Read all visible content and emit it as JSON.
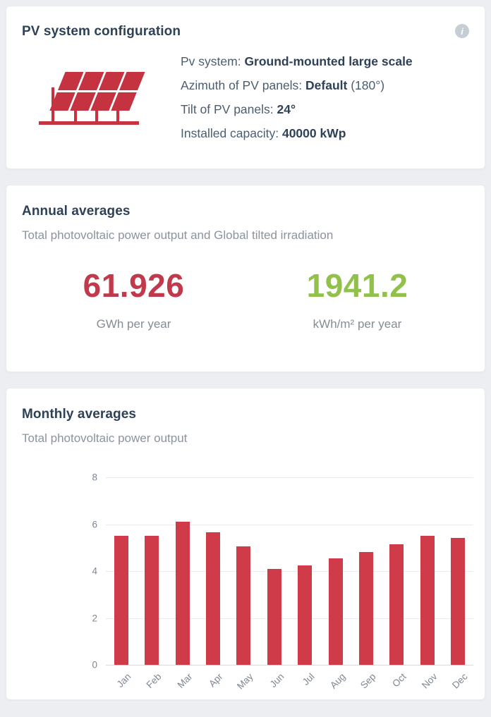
{
  "colors": {
    "background": "#edeef1",
    "card": "#ffffff",
    "heading": "#2e4156",
    "body_text": "#4c5d6f",
    "muted_text": "#8c939d",
    "axis_text": "#7e8792",
    "red_accent": "#c03a4c",
    "green_accent": "#92c14b",
    "bar_red": "#d03b49",
    "icon_red": "#c53240",
    "info_icon_bg": "#c7cdd4"
  },
  "pv_card": {
    "title": "PV system configuration",
    "info_icon_glyph": "i",
    "lines": [
      {
        "label": "Pv system: ",
        "value": "Ground-mounted large scale",
        "suffix": ""
      },
      {
        "label": "Azimuth of PV panels: ",
        "value": "Default",
        "suffix": " (180°)"
      },
      {
        "label": "Tilt of PV panels: ",
        "value": "24°",
        "suffix": ""
      },
      {
        "label": "Installed capacity: ",
        "value": "40000 kWp",
        "suffix": ""
      }
    ]
  },
  "annual_card": {
    "title": "Annual averages",
    "subtitle": "Total photovoltaic power output and Global tilted irradiation",
    "stats": [
      {
        "value": "61.926",
        "unit": "GWh per year",
        "color": "#c03a4c"
      },
      {
        "value": "1941.2",
        "unit": "kWh/m² per year",
        "color": "#92c14b"
      }
    ]
  },
  "monthly_card": {
    "title": "Monthly averages",
    "subtitle": "Total photovoltaic power output"
  },
  "chart_data": {
    "type": "bar",
    "title": "Monthly averages — Total photovoltaic power output",
    "categories": [
      "Jan",
      "Feb",
      "Mar",
      "Apr",
      "May",
      "Jun",
      "Jul",
      "Aug",
      "Sep",
      "Oct",
      "Nov",
      "Dec"
    ],
    "values": [
      5.5,
      5.5,
      6.1,
      5.65,
      5.05,
      4.1,
      4.25,
      4.55,
      4.8,
      5.15,
      5.5,
      5.4
    ],
    "xlabel": "",
    "ylabel": "",
    "ylim": [
      0,
      8
    ],
    "yticks": [
      0,
      2,
      4,
      6,
      8
    ],
    "bar_color": "#d03b49",
    "grid": true,
    "legend": false
  }
}
